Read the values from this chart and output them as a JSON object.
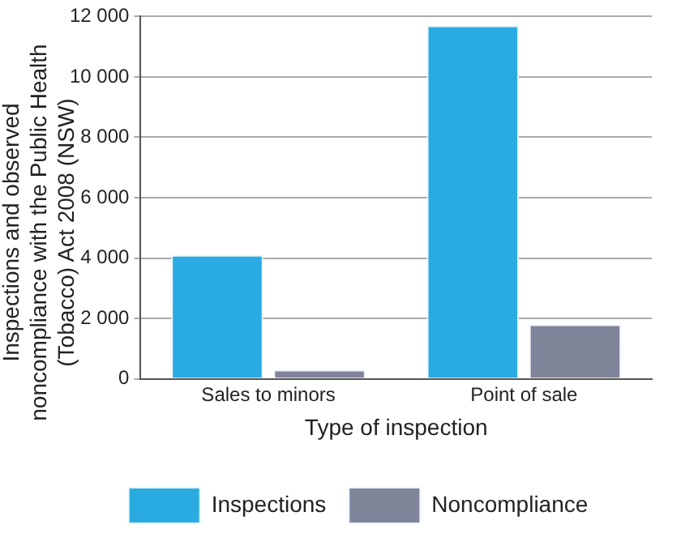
{
  "chart_data": {
    "type": "bar",
    "xlabel": "Type of inspection",
    "ylabel": "Inspections and observed noncompliance with the Public Health (Tobacco) Act 2008 (NSW)",
    "categories": [
      "Sales to minors",
      "Point of sale"
    ],
    "series": [
      {
        "name": "Inspections",
        "color": "#29abe2",
        "values": [
          4100,
          11700
        ]
      },
      {
        "name": "Noncompliance",
        "color": "#808499",
        "values": [
          300,
          1800
        ]
      }
    ],
    "ylim": [
      0,
      12000
    ],
    "yticks": [
      0,
      {
        "value": 2000,
        "label": "2 000"
      },
      {
        "value": 4000,
        "label": "4 000"
      },
      {
        "value": 6000,
        "label": "6 000"
      },
      {
        "value": 8000,
        "label": "8 000"
      },
      {
        "value": 10000,
        "label": "10 000"
      },
      {
        "value": 12000,
        "label": "12 000"
      }
    ],
    "grid": "y",
    "legend": "bottom"
  }
}
